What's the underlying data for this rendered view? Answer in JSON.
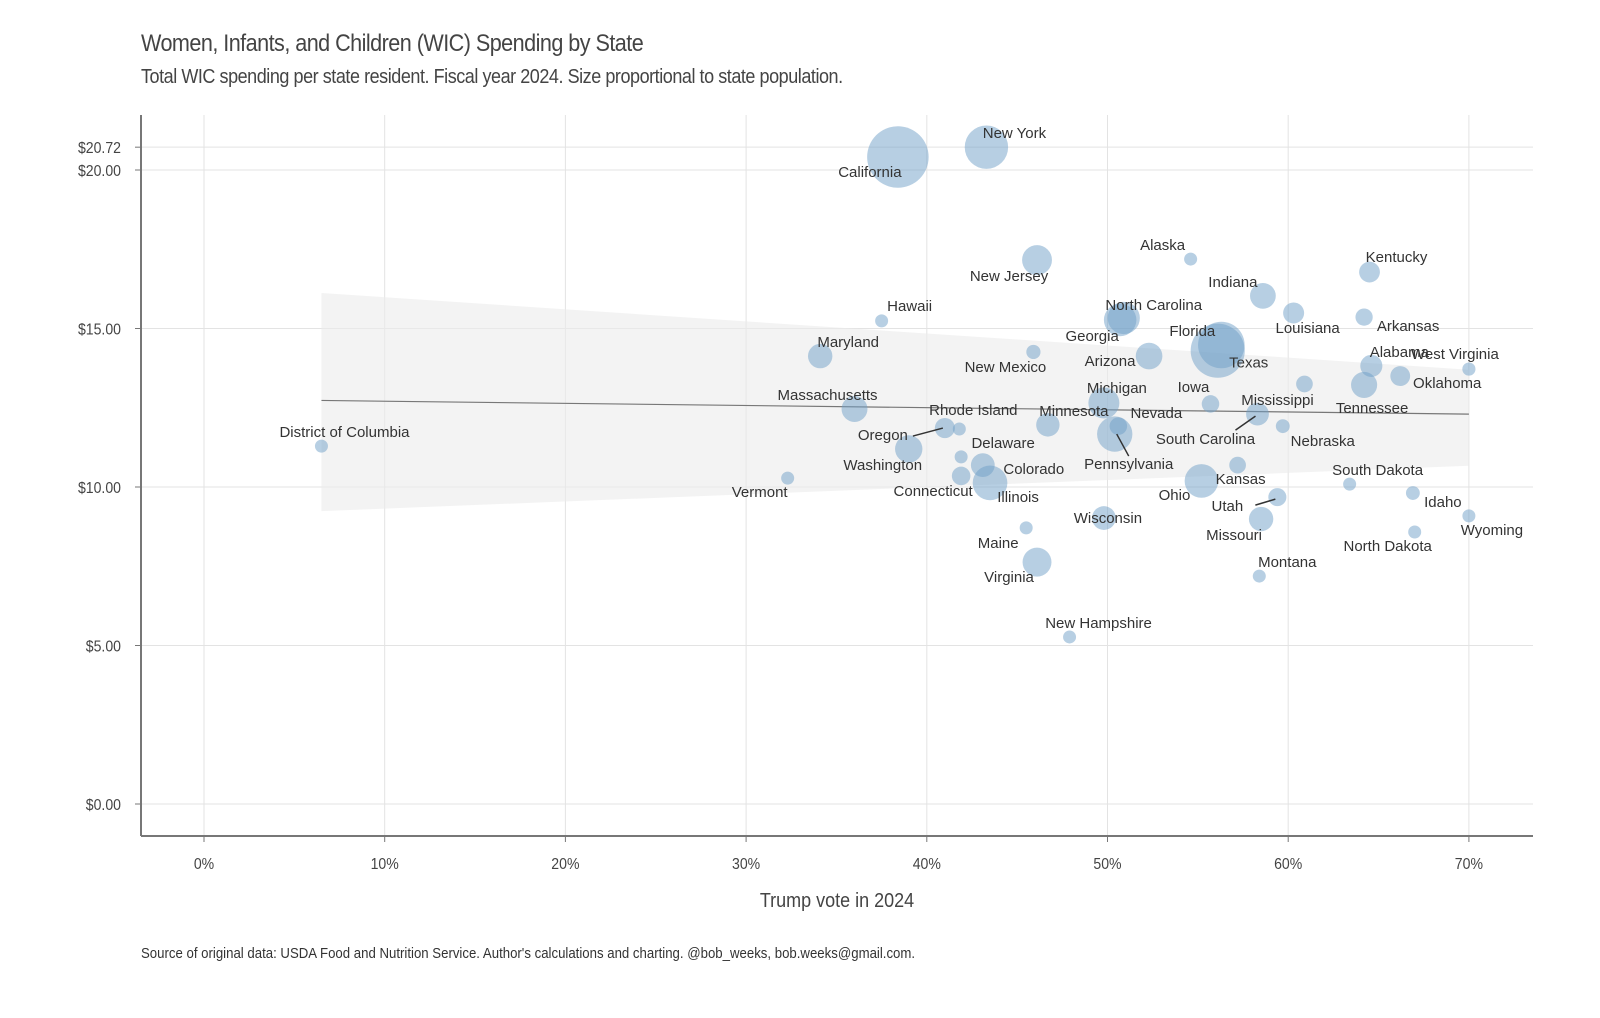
{
  "chart_data": {
    "type": "scatter",
    "title": "Women, Infants, and Children (WIC) Spending by State",
    "subtitle": "Total WIC spending per state resident. Fiscal year 2024. Size proportional to state population.",
    "caption": "Source of original data: USDA Food and Nutrition Service. Author's calculations and charting. @bob_weeks, bob.weeks@gmail.com.",
    "xlabel": "Trump vote in 2024",
    "ylabel": "",
    "xlim": [
      -3.5,
      73.5
    ],
    "ylim": [
      -1.0,
      21.7
    ],
    "x_ticks": [
      0,
      10,
      20,
      30,
      40,
      50,
      60,
      70
    ],
    "x_tick_labels": [
      "0%",
      "10%",
      "20%",
      "30%",
      "40%",
      "50%",
      "60%",
      "70%"
    ],
    "y_ticks": [
      0,
      5,
      10,
      15,
      20,
      20.72
    ],
    "y_tick_labels": [
      "$0.00",
      "$5.00",
      "$10.00",
      "$15.00",
      "$20.00",
      "$20.72"
    ],
    "grid": true,
    "point_color": "#6f9fc8",
    "trend_line": {
      "x": [
        6.5,
        70.0
      ],
      "y": [
        12.73,
        12.3
      ]
    },
    "trend_band": {
      "x": [
        6.5,
        70.0
      ],
      "upper": [
        16.12,
        13.7
      ],
      "lower": [
        9.24,
        10.67
      ]
    },
    "points": [
      {
        "name": "District of Columbia",
        "x": 6.5,
        "y": 11.29,
        "size": 0.7
      },
      {
        "name": "Vermont",
        "x": 32.3,
        "y": 10.28,
        "size": 0.65
      },
      {
        "name": "California",
        "x": 38.4,
        "y": 20.41,
        "size": 39.4
      },
      {
        "name": "New York",
        "x": 43.3,
        "y": 20.72,
        "size": 19.6
      },
      {
        "name": "New Jersey",
        "x": 46.1,
        "y": 17.16,
        "size": 9.3
      },
      {
        "name": "Hawaii",
        "x": 37.5,
        "y": 15.24,
        "size": 1.4
      },
      {
        "name": "Maryland",
        "x": 34.1,
        "y": 14.13,
        "size": 6.2
      },
      {
        "name": "Massachusetts",
        "x": 36.0,
        "y": 12.46,
        "size": 7.0
      },
      {
        "name": "Oregon",
        "x": 41.0,
        "y": 11.86,
        "size": 4.2
      },
      {
        "name": "Rhode Island",
        "x": 41.8,
        "y": 11.83,
        "size": 1.1
      },
      {
        "name": "Washington",
        "x": 39.0,
        "y": 11.2,
        "size": 7.8
      },
      {
        "name": "Delaware",
        "x": 41.9,
        "y": 10.95,
        "size": 1.0
      },
      {
        "name": "Colorado",
        "x": 43.1,
        "y": 10.69,
        "size": 5.9
      },
      {
        "name": "Connecticut",
        "x": 41.9,
        "y": 10.35,
        "size": 3.6
      },
      {
        "name": "Illinois",
        "x": 43.5,
        "y": 10.13,
        "size": 12.5
      },
      {
        "name": "New Mexico",
        "x": 45.9,
        "y": 14.26,
        "size": 2.1
      },
      {
        "name": "Georgia",
        "x": 50.7,
        "y": 15.27,
        "size": 11.0
      },
      {
        "name": "North Carolina",
        "x": 50.9,
        "y": 15.33,
        "size": 10.8
      },
      {
        "name": "Arizona",
        "x": 52.3,
        "y": 14.13,
        "size": 7.4
      },
      {
        "name": "Florida",
        "x": 56.3,
        "y": 14.48,
        "size": 22.6
      },
      {
        "name": "Texas",
        "x": 56.1,
        "y": 14.3,
        "size": 30.5
      },
      {
        "name": "Michigan",
        "x": 49.8,
        "y": 12.65,
        "size": 10.0
      },
      {
        "name": "Minnesota",
        "x": 46.7,
        "y": 11.96,
        "size": 5.7
      },
      {
        "name": "Nevada",
        "x": 50.6,
        "y": 11.92,
        "size": 3.2
      },
      {
        "name": "Pennsylvania",
        "x": 50.4,
        "y": 11.67,
        "size": 13.0
      },
      {
        "name": "Wisconsin",
        "x": 49.8,
        "y": 9.02,
        "size": 5.9
      },
      {
        "name": "Maine",
        "x": 45.5,
        "y": 8.71,
        "size": 1.4
      },
      {
        "name": "Virginia",
        "x": 46.1,
        "y": 7.63,
        "size": 8.7
      },
      {
        "name": "New Hampshire",
        "x": 47.9,
        "y": 5.27,
        "size": 1.4
      },
      {
        "name": "Alaska",
        "x": 54.6,
        "y": 17.19,
        "size": 0.7
      },
      {
        "name": "Indiana",
        "x": 58.6,
        "y": 16.03,
        "size": 6.9
      },
      {
        "name": "Louisiana",
        "x": 60.3,
        "y": 15.49,
        "size": 4.6
      },
      {
        "name": "Kentucky",
        "x": 64.5,
        "y": 16.78,
        "size": 4.5
      },
      {
        "name": "Arkansas",
        "x": 64.2,
        "y": 15.36,
        "size": 3.1
      },
      {
        "name": "Alabama",
        "x": 64.6,
        "y": 13.82,
        "size": 5.1
      },
      {
        "name": "Tennessee",
        "x": 64.2,
        "y": 13.22,
        "size": 7.1
      },
      {
        "name": "Oklahoma",
        "x": 66.2,
        "y": 13.5,
        "size": 4.1
      },
      {
        "name": "West Virginia",
        "x": 70.0,
        "y": 13.72,
        "size": 1.8
      },
      {
        "name": "Iowa",
        "x": 55.7,
        "y": 12.62,
        "size": 3.2
      },
      {
        "name": "Mississippi",
        "x": 60.9,
        "y": 13.25,
        "size": 2.9
      },
      {
        "name": "South Carolina",
        "x": 58.3,
        "y": 12.3,
        "size": 5.4
      },
      {
        "name": "Nebraska",
        "x": 59.7,
        "y": 11.92,
        "size": 2.0
      },
      {
        "name": "Ohio",
        "x": 55.2,
        "y": 10.19,
        "size": 11.8
      },
      {
        "name": "Kansas",
        "x": 57.2,
        "y": 10.69,
        "size": 2.9
      },
      {
        "name": "Utah",
        "x": 59.4,
        "y": 9.68,
        "size": 3.4
      },
      {
        "name": "Missouri",
        "x": 58.5,
        "y": 8.99,
        "size": 6.2
      },
      {
        "name": "Montana",
        "x": 58.4,
        "y": 7.19,
        "size": 1.1
      },
      {
        "name": "South Dakota",
        "x": 63.4,
        "y": 10.09,
        "size": 0.9
      },
      {
        "name": "Idaho",
        "x": 66.9,
        "y": 9.81,
        "size": 2.0
      },
      {
        "name": "North Dakota",
        "x": 67.0,
        "y": 8.58,
        "size": 0.8
      },
      {
        "name": "Wyoming",
        "x": 70.0,
        "y": 9.09,
        "size": 0.6
      }
    ]
  }
}
